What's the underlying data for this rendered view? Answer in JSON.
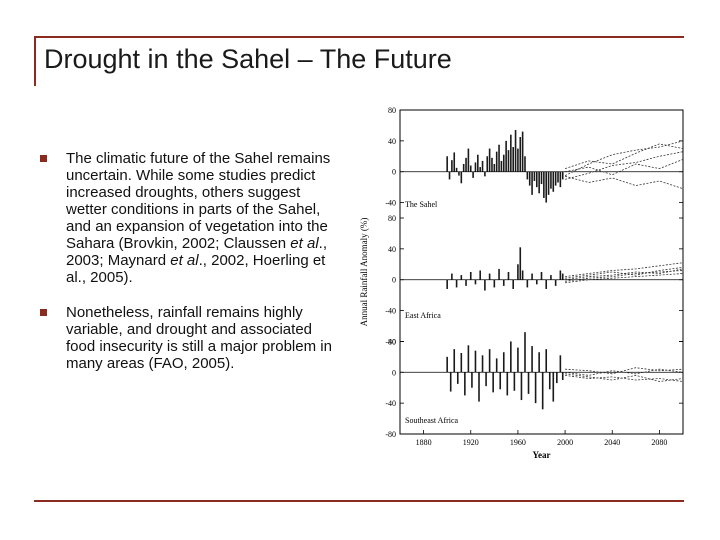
{
  "slide": {
    "title": "Drought in the Sahel – The Future",
    "bullets": [
      {
        "segments": [
          {
            "text": "The climatic future of the Sahel remains uncertain. While some studies predict increased droughts, others suggest wetter conditions in parts of the Sahel, and an expansion of vegetation into the Sahara (Brovkin, 2002; Claussen ",
            "italic": false
          },
          {
            "text": "et al",
            "italic": true
          },
          {
            "text": "., 2003; Maynard ",
            "italic": false
          },
          {
            "text": "et al",
            "italic": true
          },
          {
            "text": "., 2002, Hoerling et al., 2005).",
            "italic": false
          }
        ]
      },
      {
        "segments": [
          {
            "text": "Nonetheless, rainfall remains highly variable, and drought and associated food insecurity is still a major problem in many areas (FAO, 2005).",
            "italic": false
          }
        ]
      }
    ],
    "colors": {
      "frame": "#8b2a1e",
      "bullet": "#8b2a1e",
      "text": "#111111"
    }
  },
  "chart_data": [
    {
      "type": "bar",
      "panel_label": "The Sahel",
      "ylabel": "Annual Rainfall Anomaly (%)",
      "xlabel": "Year",
      "xlim": [
        1860,
        2100
      ],
      "ylim": [
        -60,
        80
      ],
      "yticks": [
        80,
        40,
        0,
        -40
      ],
      "xticks": [
        1880,
        1920,
        1960,
        2000,
        2040,
        2080
      ],
      "observed": {
        "x": [
          1900,
          1902,
          1904,
          1906,
          1908,
          1910,
          1912,
          1914,
          1916,
          1918,
          1920,
          1922,
          1924,
          1926,
          1928,
          1930,
          1932,
          1934,
          1936,
          1938,
          1940,
          1942,
          1944,
          1946,
          1948,
          1950,
          1952,
          1954,
          1956,
          1958,
          1960,
          1962,
          1964,
          1966,
          1968,
          1970,
          1972,
          1974,
          1976,
          1978,
          1980,
          1982,
          1984,
          1986,
          1988,
          1990,
          1992,
          1994,
          1996,
          1998
        ],
        "values": [
          20,
          -10,
          15,
          25,
          5,
          -5,
          -15,
          10,
          18,
          30,
          8,
          -8,
          12,
          22,
          6,
          14,
          -6,
          20,
          30,
          18,
          10,
          26,
          35,
          14,
          22,
          40,
          28,
          48,
          32,
          54,
          30,
          45,
          52,
          20,
          -10,
          -18,
          -30,
          -12,
          -20,
          -28,
          -16,
          -34,
          -40,
          -30,
          -22,
          -26,
          -18,
          -14,
          -20,
          -10
        ]
      },
      "projections": [
        {
          "x": [
            2000,
            2020,
            2040,
            2060,
            2080,
            2100
          ],
          "values": [
            -5,
            10,
            22,
            28,
            32,
            40
          ]
        },
        {
          "x": [
            2000,
            2020,
            2040,
            2060,
            2080,
            2100
          ],
          "values": [
            -10,
            -2,
            8,
            12,
            20,
            26
          ]
        },
        {
          "x": [
            2000,
            2020,
            2040,
            2060,
            2080,
            2100
          ],
          "values": [
            0,
            6,
            -4,
            10,
            4,
            16
          ]
        },
        {
          "x": [
            2000,
            2020,
            2040,
            2060,
            2080,
            2100
          ],
          "values": [
            -6,
            -14,
            -8,
            -18,
            -12,
            -22
          ]
        },
        {
          "x": [
            2000,
            2020,
            2040,
            2060,
            2080,
            2100
          ],
          "values": [
            4,
            14,
            10,
            24,
            36,
            30
          ]
        }
      ]
    },
    {
      "type": "bar",
      "panel_label": "East Africa",
      "xlim": [
        1860,
        2100
      ],
      "ylim": [
        -60,
        80
      ],
      "yticks": [
        80,
        40,
        0,
        -40,
        -80
      ],
      "xticks": [
        1880,
        1920,
        1960,
        2000,
        2040,
        2080
      ],
      "observed": {
        "x": [
          1900,
          1904,
          1908,
          1912,
          1916,
          1920,
          1924,
          1928,
          1932,
          1936,
          1940,
          1944,
          1948,
          1952,
          1956,
          1960,
          1962,
          1964,
          1968,
          1972,
          1976,
          1980,
          1984,
          1988,
          1992,
          1996,
          1998
        ],
        "values": [
          -12,
          8,
          -10,
          6,
          -8,
          10,
          -6,
          12,
          -14,
          8,
          -10,
          14,
          -8,
          10,
          -12,
          20,
          42,
          12,
          -10,
          8,
          -6,
          10,
          -12,
          6,
          -8,
          12,
          8
        ]
      },
      "projections": [
        {
          "x": [
            2000,
            2020,
            2040,
            2060,
            2080,
            2100
          ],
          "values": [
            4,
            8,
            12,
            14,
            18,
            22
          ]
        },
        {
          "x": [
            2000,
            2020,
            2040,
            2060,
            2080,
            2100
          ],
          "values": [
            0,
            4,
            6,
            10,
            8,
            14
          ]
        },
        {
          "x": [
            2000,
            2020,
            2040,
            2060,
            2080,
            2100
          ],
          "values": [
            -4,
            0,
            2,
            4,
            6,
            8
          ]
        },
        {
          "x": [
            2000,
            2020,
            2040,
            2060,
            2080,
            2100
          ],
          "values": [
            2,
            6,
            10,
            6,
            12,
            16
          ]
        },
        {
          "x": [
            2000,
            2020,
            2040,
            2060,
            2080,
            2100
          ],
          "values": [
            -2,
            2,
            4,
            8,
            10,
            12
          ]
        }
      ]
    },
    {
      "type": "bar",
      "panel_label": "Southeast Africa",
      "xlim": [
        1860,
        2100
      ],
      "ylim": [
        -80,
        60
      ],
      "yticks": [
        40,
        0,
        -40,
        -80
      ],
      "xticks": [
        1880,
        1920,
        1960,
        2000,
        2040,
        2080
      ],
      "observed": {
        "x": [
          1900,
          1903,
          1906,
          1909,
          1912,
          1915,
          1918,
          1921,
          1924,
          1927,
          1930,
          1933,
          1936,
          1939,
          1942,
          1945,
          1948,
          1951,
          1954,
          1957,
          1960,
          1963,
          1966,
          1969,
          1972,
          1975,
          1978,
          1981,
          1984,
          1987,
          1990,
          1993,
          1996,
          1998
        ],
        "values": [
          20,
          -25,
          30,
          -15,
          25,
          -30,
          35,
          -20,
          28,
          -38,
          22,
          -18,
          30,
          -26,
          18,
          -22,
          26,
          -30,
          40,
          -24,
          32,
          -36,
          52,
          -28,
          34,
          -40,
          26,
          -48,
          30,
          -22,
          -38,
          -14,
          22,
          -10
        ]
      },
      "projections": [
        {
          "x": [
            2000,
            2020,
            2040,
            2060,
            2080,
            2100
          ],
          "values": [
            0,
            -4,
            2,
            -2,
            4,
            0
          ]
        },
        {
          "x": [
            2000,
            2020,
            2040,
            2060,
            2080,
            2100
          ],
          "values": [
            -4,
            -8,
            -6,
            -10,
            -8,
            -12
          ]
        },
        {
          "x": [
            2000,
            2020,
            2040,
            2060,
            2080,
            2100
          ],
          "values": [
            4,
            2,
            -2,
            6,
            2,
            4
          ]
        },
        {
          "x": [
            2000,
            2020,
            2040,
            2060,
            2080,
            2100
          ],
          "values": [
            -2,
            -6,
            -10,
            -4,
            -12,
            -8
          ]
        }
      ]
    }
  ]
}
